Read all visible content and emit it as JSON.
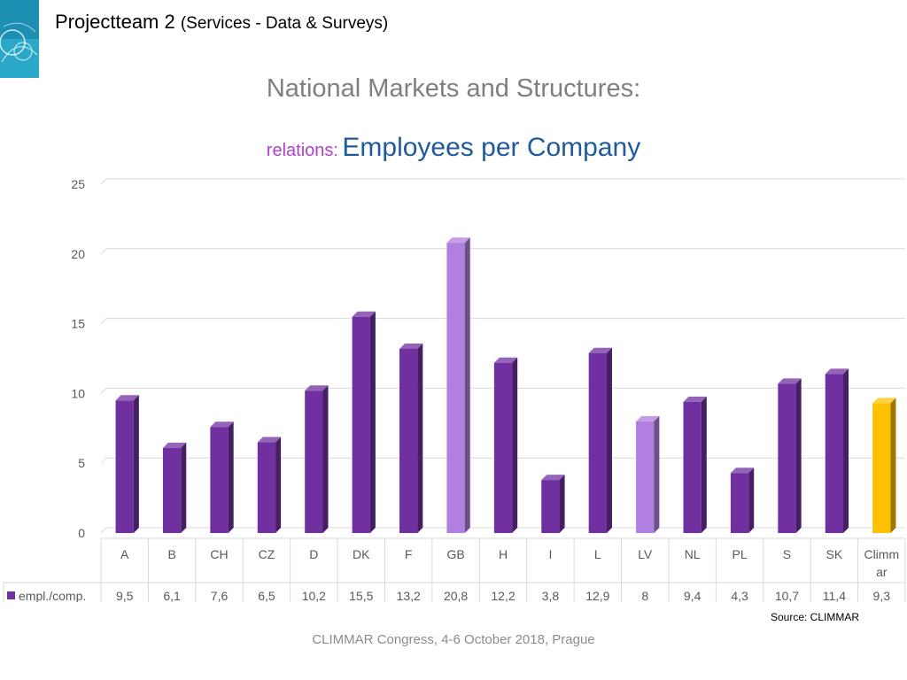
{
  "header": {
    "title": "Projectteam 2",
    "subtitle": "(Services - Data & Surveys)"
  },
  "chart_data": {
    "type": "bar",
    "title": "National Markets and Structures:",
    "subtitle_prefix": "relations:",
    "subtitle_main": "Employees per Company",
    "categories": [
      "A",
      "B",
      "CH",
      "CZ",
      "D",
      "DK",
      "F",
      "GB",
      "H",
      "I",
      "L",
      "LV",
      "NL",
      "PL",
      "S",
      "SK",
      "Climmar"
    ],
    "category_display": [
      [
        "A"
      ],
      [
        "B"
      ],
      [
        "CH"
      ],
      [
        "CZ"
      ],
      [
        "D"
      ],
      [
        "DK"
      ],
      [
        "F"
      ],
      [
        "GB"
      ],
      [
        "H"
      ],
      [
        "I"
      ],
      [
        "L"
      ],
      [
        "LV"
      ],
      [
        "NL"
      ],
      [
        "PL"
      ],
      [
        "S"
      ],
      [
        "SK"
      ],
      [
        "Climm",
        "ar"
      ]
    ],
    "series": [
      {
        "name": "empl./comp.",
        "values": [
          9.5,
          6.1,
          7.6,
          6.5,
          10.2,
          15.5,
          13.2,
          20.8,
          12.2,
          3.8,
          12.9,
          8,
          9.4,
          4.3,
          10.7,
          11.4,
          9.3
        ],
        "value_labels": [
          "9,5",
          "6,1",
          "7,6",
          "6,5",
          "10,2",
          "15,5",
          "13,2",
          "20,8",
          "12,2",
          "3,8",
          "12,9",
          "8",
          "9,4",
          "4,3",
          "10,7",
          "11,4",
          "9,3"
        ]
      }
    ],
    "ylim": [
      0,
      25
    ],
    "yticks": [
      0,
      5,
      10,
      15,
      20,
      25
    ],
    "grid": true,
    "legend": "data-table",
    "colors": {
      "default": "#7030a0",
      "highlight": "#b07fdf",
      "climmar": "#ffc000",
      "highlight_categories": [
        "GB",
        "LV"
      ],
      "climmar_category": "Climmar"
    }
  },
  "source": "Source: CLIMMAR",
  "footer": "CLIMMAR Congress, 4-6 October 2018, Prague"
}
